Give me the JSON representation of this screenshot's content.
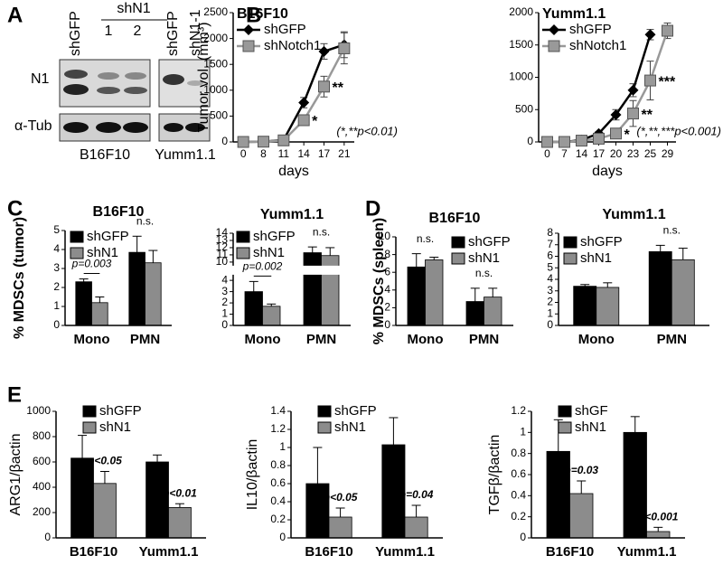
{
  "blot": {
    "panel": "A",
    "lanes_left": {
      "control": "shGFP",
      "group": "shN1",
      "lanes": [
        "1",
        "2"
      ]
    },
    "lanes_right": [
      "shGFP",
      "shN1-1"
    ],
    "rows": [
      "N1",
      "α-Tub"
    ],
    "cell_lines": [
      "B16F10",
      "Yumm1.1"
    ]
  },
  "panels": [
    "B",
    "C",
    "D",
    "E"
  ],
  "chart_data": [
    {
      "type": "line",
      "title": "B16F10",
      "ylabel": "Tumor vol. (mm³)",
      "xlabel": "days",
      "categories": [
        "0",
        "8",
        "11",
        "14",
        "17",
        "21"
      ],
      "ylim": [
        0,
        2500
      ],
      "yticks": [
        0,
        500,
        1000,
        1500,
        2000,
        2500
      ],
      "series": [
        {
          "name": "shGFP",
          "color": "#000000",
          "marker": "diamond",
          "values": [
            0,
            5,
            40,
            760,
            1750,
            1880
          ],
          "errors": [
            0,
            0,
            0,
            100,
            150,
            250
          ]
        },
        {
          "name": "shNotch1",
          "color": "#999999",
          "marker": "square",
          "values": [
            0,
            5,
            30,
            420,
            1070,
            1810
          ],
          "errors": [
            0,
            0,
            0,
            80,
            200,
            300
          ]
        }
      ],
      "annotations": [
        {
          "text": "*",
          "x": "14",
          "series": "shNotch1"
        },
        {
          "text": "**",
          "x": "17",
          "series": "shNotch1"
        },
        {
          "text": "(*,**p<0.01)"
        }
      ]
    },
    {
      "type": "line",
      "title": "Yumm1.1",
      "xlabel": "days",
      "categories": [
        "0",
        "7",
        "14",
        "17",
        "20",
        "23",
        "25",
        "29"
      ],
      "ylim": [
        0,
        2000
      ],
      "yticks": [
        0,
        500,
        1000,
        1500,
        2000
      ],
      "series": [
        {
          "name": "shGFP",
          "color": "#000000",
          "marker": "diamond",
          "values": [
            0,
            0,
            30,
            130,
            420,
            800,
            1660,
            null
          ],
          "errors": [
            0,
            0,
            0,
            30,
            80,
            100,
            80,
            null
          ]
        },
        {
          "name": "shNotch1",
          "color": "#999999",
          "marker": "square",
          "values": [
            0,
            0,
            20,
            50,
            130,
            440,
            950,
            1720
          ],
          "errors": [
            0,
            0,
            0,
            20,
            40,
            200,
            300,
            120
          ]
        }
      ],
      "annotations": [
        {
          "text": "*",
          "x": "20",
          "series": "shNotch1"
        },
        {
          "text": "**",
          "x": "23",
          "series": "shNotch1"
        },
        {
          "text": "***",
          "x": "25",
          "series": "shNotch1"
        },
        {
          "text": "(*,**,***p<0.001)"
        }
      ]
    },
    {
      "type": "bar",
      "title": "B16F10",
      "ylabel": "% MDSCs (tumor)",
      "categories": [
        "Mono",
        "PMN"
      ],
      "ylim": [
        0,
        5
      ],
      "yticks": [
        0,
        1,
        2,
        3,
        4,
        5
      ],
      "series": [
        {
          "name": "shGFP",
          "color": "#000000",
          "values": [
            2.3,
            3.85
          ],
          "errors": [
            0.15,
            0.85
          ]
        },
        {
          "name": "shN1",
          "color": "#8c8c8c",
          "values": [
            1.2,
            3.3
          ],
          "errors": [
            0.3,
            0.65
          ]
        }
      ],
      "annotations": [
        {
          "text": "p=0.003",
          "category": "Mono"
        },
        {
          "text": "n.s.",
          "category": "PMN"
        }
      ]
    },
    {
      "type": "bar",
      "title": "Yumm1.1",
      "categories": [
        "Mono",
        "PMN"
      ],
      "ylim": [
        0,
        14
      ],
      "yticks": [
        0,
        1,
        2,
        3,
        4,
        10,
        11,
        12,
        13,
        14
      ],
      "broken_axis": true,
      "series": [
        {
          "name": "shGFP",
          "color": "#000000",
          "values": [
            3.0,
            11.3
          ],
          "errors": [
            0.9,
            0.8
          ]
        },
        {
          "name": "shN1",
          "color": "#8c8c8c",
          "values": [
            1.7,
            10.9
          ],
          "errors": [
            0.2,
            1.1
          ]
        }
      ],
      "annotations": [
        {
          "text": "p=0.002",
          "category": "Mono"
        },
        {
          "text": "n.s.",
          "category": "PMN"
        }
      ]
    },
    {
      "type": "bar",
      "title": "B16F10",
      "ylabel": "% MDSCs (spleen)",
      "categories": [
        "Mono",
        "PMN"
      ],
      "ylim": [
        0,
        10
      ],
      "yticks": [
        0,
        2,
        4,
        6,
        8,
        10
      ],
      "series": [
        {
          "name": "shGFP",
          "color": "#000000",
          "values": [
            6.6,
            2.7
          ],
          "errors": [
            1.5,
            1.5
          ]
        },
        {
          "name": "shN1",
          "color": "#8c8c8c",
          "values": [
            7.4,
            3.2
          ],
          "errors": [
            0.3,
            1.0
          ]
        }
      ],
      "annotations": [
        {
          "text": "n.s.",
          "category": "Mono"
        },
        {
          "text": "n.s.",
          "category": "PMN"
        }
      ]
    },
    {
      "type": "bar",
      "title": "Yumm1.1",
      "categories": [
        "Mono",
        "PMN"
      ],
      "ylim": [
        0,
        8
      ],
      "yticks": [
        0,
        1,
        2,
        3,
        4,
        5,
        6,
        7,
        8
      ],
      "series": [
        {
          "name": "shGFP",
          "color": "#000000",
          "values": [
            3.4,
            6.4
          ],
          "errors": [
            0.15,
            0.55
          ]
        },
        {
          "name": "shN1",
          "color": "#8c8c8c",
          "values": [
            3.3,
            5.7
          ],
          "errors": [
            0.4,
            1.0
          ]
        }
      ],
      "annotations": [
        {
          "text": "n.s.",
          "category": "PMN"
        }
      ]
    },
    {
      "type": "bar",
      "ylabel": "ARG1/βactin",
      "categories": [
        "B16F10",
        "Yumm1.1"
      ],
      "ylim": [
        0,
        1000
      ],
      "yticks": [
        0,
        200,
        400,
        600,
        800,
        1000
      ],
      "series": [
        {
          "name": "shGFP",
          "color": "#000000",
          "values": [
            630,
            600
          ],
          "errors": [
            180,
            55
          ]
        },
        {
          "name": "shN1",
          "color": "#8c8c8c",
          "values": [
            430,
            240
          ],
          "errors": [
            95,
            30
          ]
        }
      ],
      "annotations": [
        {
          "text": "p<0.05",
          "category": "B16F10",
          "series": "shN1"
        },
        {
          "text": "p<0.01",
          "category": "Yumm1.1",
          "series": "shN1"
        }
      ]
    },
    {
      "type": "bar",
      "ylabel": "IL10/βactin",
      "categories": [
        "B16F10",
        "Yumm1.1"
      ],
      "ylim": [
        0,
        1.4
      ],
      "yticks": [
        0,
        0.2,
        0.4,
        0.6,
        0.8,
        1,
        1.2,
        1.4
      ],
      "series": [
        {
          "name": "shGFP",
          "color": "#000000",
          "values": [
            0.6,
            1.03
          ],
          "errors": [
            0.4,
            0.3
          ]
        },
        {
          "name": "shN1",
          "color": "#8c8c8c",
          "values": [
            0.23,
            0.23
          ],
          "errors": [
            0.1,
            0.13
          ]
        }
      ],
      "annotations": [
        {
          "text": "p<0.05",
          "category": "B16F10",
          "series": "shN1"
        },
        {
          "text": "p=0.04",
          "category": "Yumm1.1",
          "series": "shN1"
        }
      ]
    },
    {
      "type": "bar",
      "ylabel": "TGFβ/βactin",
      "categories": [
        "B16F10",
        "Yumm1.1"
      ],
      "ylim": [
        0,
        1.2
      ],
      "yticks": [
        0,
        0.2,
        0.4,
        0.6,
        0.8,
        1,
        1.2
      ],
      "series": [
        {
          "name": "shGF",
          "color": "#000000",
          "values": [
            0.82,
            1.0
          ],
          "errors": [
            0.3,
            0.15
          ]
        },
        {
          "name": "shN1",
          "color": "#8c8c8c",
          "values": [
            0.42,
            0.06
          ],
          "errors": [
            0.12,
            0.04
          ]
        }
      ],
      "annotations": [
        {
          "text": "p=0.03",
          "category": "B16F10",
          "series": "shN1"
        },
        {
          "text": "p<0.001",
          "category": "Yumm1.1",
          "series": "shN1"
        }
      ]
    }
  ]
}
